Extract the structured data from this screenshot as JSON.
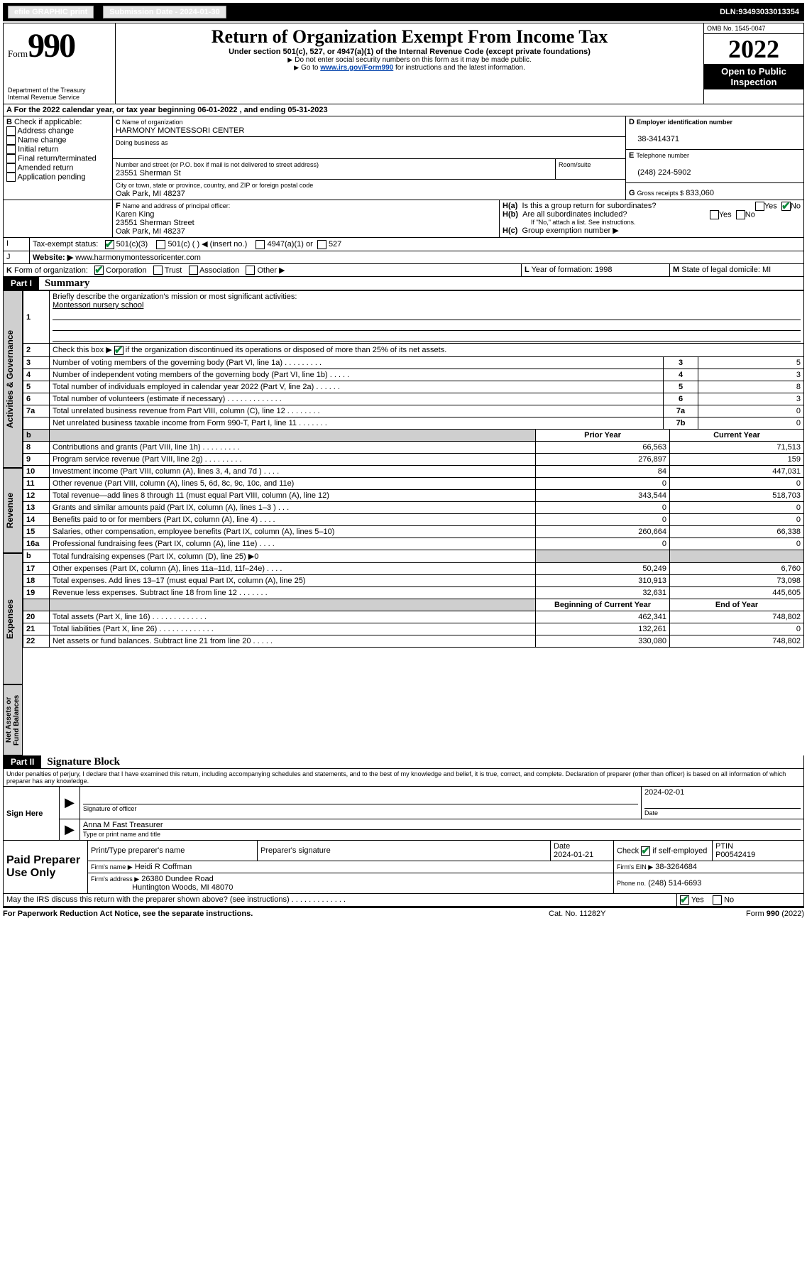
{
  "topbar": {
    "efile": "efile GRAPHIC print",
    "subdate_label": "Submission Date - ",
    "subdate": "2024-01-30",
    "dln_label": "DLN: ",
    "dln": "93493033013354"
  },
  "header": {
    "form_word": "Form",
    "form_no": "990",
    "dept1": "Department of the Treasury",
    "dept2": "Internal Revenue Service",
    "title": "Return of Organization Exempt From Income Tax",
    "sub1": "Under section 501(c), 527, or 4947(a)(1) of the Internal Revenue Code (except private foundations)",
    "sub2": "Do not enter social security numbers on this form as it may be made public.",
    "sub3_pre": "Go to ",
    "sub3_link": "www.irs.gov/Form990",
    "sub3_post": " for instructions and the latest information.",
    "omb": "OMB No. 1545-0047",
    "year": "2022",
    "open1": "Open to Public",
    "open2": "Inspection"
  },
  "A": {
    "text_pre": "For the 2022 calendar year, or tax year beginning ",
    "begin": "06-01-2022",
    "mid": " , and ending ",
    "end": "05-31-2023"
  },
  "B": {
    "label": "Check if applicable:",
    "opts": [
      "Address change",
      "Name change",
      "Initial return",
      "Final return/terminated",
      "Amended return",
      "Application pending"
    ]
  },
  "C": {
    "name_label": "Name of organization",
    "name": "HARMONY MONTESSORI CENTER",
    "dba_label": "Doing business as",
    "addr_label": "Number and street (or P.O. box if mail is not delivered to street address)",
    "room_label": "Room/suite",
    "addr": "23551 Sherman St",
    "city_label": "City or town, state or province, country, and ZIP or foreign postal code",
    "city": "Oak Park, MI  48237"
  },
  "D": {
    "label": "Employer identification number",
    "value": "38-3414371"
  },
  "E": {
    "label": "Telephone number",
    "value": "(248) 224-5902"
  },
  "G": {
    "label": "Gross receipts $",
    "value": "833,060"
  },
  "F": {
    "label": "Name and address of principal officer:",
    "line1": "Karen King",
    "line2": "23551 Sherman Street",
    "line3": "Oak Park, MI  48237"
  },
  "H": {
    "a": "Is this a group return for subordinates?",
    "b": "Are all subordinates included?",
    "bnote": "If \"No,\" attach a list. See instructions.",
    "c_label": "Group exemption number ▶",
    "yes": "Yes",
    "no": "No"
  },
  "I": {
    "label": "Tax-exempt status:",
    "o1": "501(c)(3)",
    "o2": "501(c) (   ) ◀ (insert no.)",
    "o3": "4947(a)(1) or",
    "o4": "527"
  },
  "J": {
    "label": "Website: ▶",
    "value": "www.harmonymontessoricenter.com"
  },
  "K": {
    "label": "Form of organization:",
    "o1": "Corporation",
    "o2": "Trust",
    "o3": "Association",
    "o4": "Other ▶"
  },
  "L": {
    "label": "Year of formation:",
    "value": "1998"
  },
  "M": {
    "label": "State of legal domicile:",
    "value": "MI"
  },
  "part1": {
    "label": "Part I",
    "title": "Summary",
    "q1": "Briefly describe the organization's mission or most significant activities:",
    "q1val": "Montessori nursery school",
    "q2": "Check this box ▶          if the organization discontinued its operations or disposed of more than 25% of its net assets.",
    "lines": [
      {
        "n": "3",
        "t": "Number of voting members of the governing body (Part VI, line 1a)    .    .    .    .    .    .    .    .    .",
        "box": "3",
        "v": "5"
      },
      {
        "n": "4",
        "t": "Number of independent voting members of the governing body (Part VI, line 1b)    .    .    .    .    .",
        "box": "4",
        "v": "3"
      },
      {
        "n": "5",
        "t": "Total number of individuals employed in calendar year 2022 (Part V, line 2a)    .    .    .    .    .    .",
        "box": "5",
        "v": "8"
      },
      {
        "n": "6",
        "t": "Total number of volunteers (estimate if necessary)    .    .    .    .    .    .    .    .    .    .    .    .    .",
        "box": "6",
        "v": "3"
      },
      {
        "n": "7a",
        "t": "Total unrelated business revenue from Part VIII, column (C), line 12    .    .    .    .    .    .    .    .",
        "box": "7a",
        "v": "0"
      },
      {
        "n": "",
        "t": "Net unrelated business taxable income from Form 990-T, Part I, line 11    .    .    .    .    .    .    .",
        "box": "7b",
        "v": "0"
      }
    ],
    "col_prior": "Prior Year",
    "col_curr": "Current Year",
    "col_begin": "Beginning of Current Year",
    "col_end": "End of Year",
    "b_label": "b",
    "rev": [
      {
        "n": "8",
        "t": "Contributions and grants (Part VIII, line 1h)    .    .    .    .    .    .    .    .    .",
        "p": "66,563",
        "c": "71,513"
      },
      {
        "n": "9",
        "t": "Program service revenue (Part VIII, line 2g)    .    .    .    .    .    .    .    .    .",
        "p": "276,897",
        "c": "159"
      },
      {
        "n": "10",
        "t": "Investment income (Part VIII, column (A), lines 3, 4, and 7d )    .    .    .    .",
        "p": "84",
        "c": "447,031"
      },
      {
        "n": "11",
        "t": "Other revenue (Part VIII, column (A), lines 5, 6d, 8c, 9c, 10c, and 11e)",
        "p": "0",
        "c": "0"
      },
      {
        "n": "12",
        "t": "Total revenue—add lines 8 through 11 (must equal Part VIII, column (A), line 12)",
        "p": "343,544",
        "c": "518,703"
      }
    ],
    "exp": [
      {
        "n": "13",
        "t": "Grants and similar amounts paid (Part IX, column (A), lines 1–3 )    .    .    .",
        "p": "0",
        "c": "0"
      },
      {
        "n": "14",
        "t": "Benefits paid to or for members (Part IX, column (A), line 4)    .    .    .    .",
        "p": "0",
        "c": "0"
      },
      {
        "n": "15",
        "t": "Salaries, other compensation, employee benefits (Part IX, column (A), lines 5–10)",
        "p": "260,664",
        "c": "66,338"
      },
      {
        "n": "16a",
        "t": "Professional fundraising fees (Part IX, column (A), line 11e)    .    .    .    .",
        "p": "0",
        "c": "0"
      },
      {
        "n": "b",
        "t": "Total fundraising expenses (Part IX, column (D), line 25) ▶0",
        "p": "",
        "c": ""
      },
      {
        "n": "17",
        "t": "Other expenses (Part IX, column (A), lines 11a–11d, 11f–24e)    .    .    .    .",
        "p": "50,249",
        "c": "6,760"
      },
      {
        "n": "18",
        "t": "Total expenses. Add lines 13–17 (must equal Part IX, column (A), line 25)",
        "p": "310,913",
        "c": "73,098"
      },
      {
        "n": "19",
        "t": "Revenue less expenses. Subtract line 18 from line 12    .    .    .    .    .    .    .",
        "p": "32,631",
        "c": "445,605"
      }
    ],
    "net": [
      {
        "n": "20",
        "t": "Total assets (Part X, line 16)    .    .    .    .    .    .    .    .    .    .    .    .    .",
        "p": "462,341",
        "c": "748,802"
      },
      {
        "n": "21",
        "t": "Total liabilities (Part X, line 26)    .    .    .    .    .    .    .    .    .    .    .    .    .",
        "p": "132,261",
        "c": "0"
      },
      {
        "n": "22",
        "t": "Net assets or fund balances. Subtract line 21 from line 20    .    .    .    .    .",
        "p": "330,080",
        "c": "748,802"
      }
    ],
    "side_gov": "Activities & Governance",
    "side_rev": "Revenue",
    "side_exp": "Expenses",
    "side_net": "Net Assets or Fund Balances"
  },
  "part2": {
    "label": "Part II",
    "title": "Signature Block",
    "decl": "Under penalties of perjury, I declare that I have examined this return, including accompanying schedules and statements, and to the best of my knowledge and belief, it is true, correct, and complete. Declaration of preparer (other than officer) is based on all information of which preparer has any knowledge.",
    "sign_here": "Sign Here",
    "sig_officer": "Signature of officer",
    "sig_date": "Date",
    "sig_date_val": "2024-02-01",
    "officer_name": "Anna M Fast  Treasurer",
    "type_name": "Type or print name and title",
    "paid": "Paid Preparer Use Only",
    "pp_name_label": "Print/Type preparer's name",
    "pp_sig_label": "Preparer's signature",
    "pp_date_label": "Date",
    "pp_date": "2024-01-21",
    "pp_check_label": "Check          if self-employed",
    "ptin_label": "PTIN",
    "ptin": "P00542419",
    "firm_name_label": "Firm's name    ▶",
    "firm_name": "Heidi R Coffman",
    "firm_ein_label": "Firm's EIN ▶",
    "firm_ein": "38-3264684",
    "firm_addr_label": "Firm's address ▶",
    "firm_addr1": "26380 Dundee Road",
    "firm_addr2": "Huntington Woods, MI  48070",
    "firm_phone_label": "Phone no.",
    "firm_phone": "(248) 514-6693",
    "irs_discuss": "May the IRS discuss this return with the preparer shown above? (see instructions)    .    .    .    .    .    .    .    .    .    .    .    .    .",
    "foot_left": "For Paperwork Reduction Act Notice, see the separate instructions.",
    "foot_mid": "Cat. No. 11282Y",
    "foot_right": "Form 990 (2022)"
  }
}
